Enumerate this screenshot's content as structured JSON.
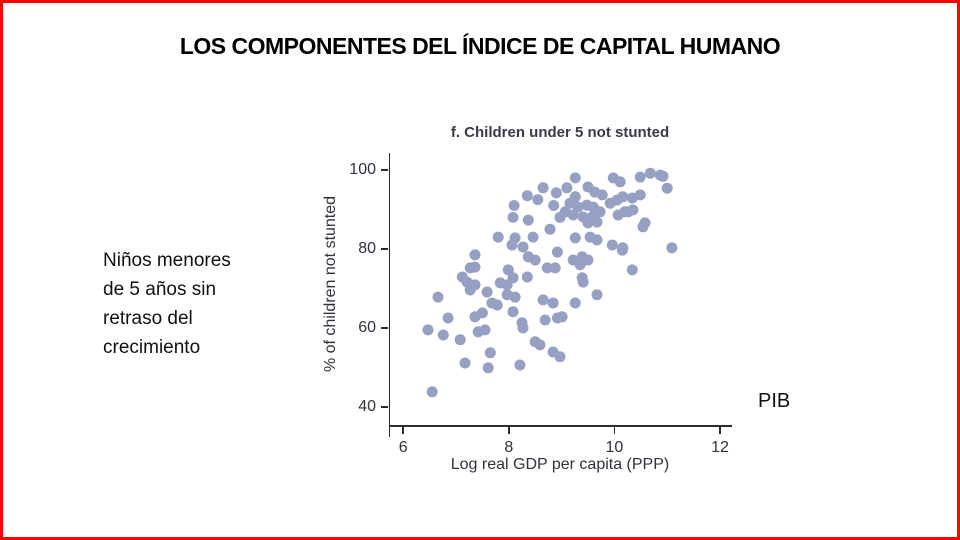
{
  "slide": {
    "title": "LOS COMPONENTES DEL ÍNDICE DE CAPITAL HUMANO",
    "left_annotation": "Niños menores\nde 5 años sin\nretraso del\ncrecimiento",
    "right_annotation": "PIB",
    "border_color": "#ff0000"
  },
  "chart_data": {
    "type": "scatter",
    "title": "f. Children under 5 not stunted",
    "xlabel": "Log real GDP per capita (PPP)",
    "ylabel": "% of children not stunted",
    "xlim": [
      5.75,
      12.19
    ],
    "ylim": [
      35.4,
      103.8
    ],
    "xticks": [
      6,
      8,
      10,
      12
    ],
    "yticks": [
      40,
      60,
      80,
      100
    ],
    "grid": false,
    "legend_position": "none",
    "marker_color": "#96a0c3",
    "marker_radius": 5.5,
    "axis_color": "#2b2b33",
    "text_color": "#32323e",
    "points": [
      [
        8.65,
        95.5
      ],
      [
        8.35,
        93.5
      ],
      [
        8.55,
        92.5
      ],
      [
        8.9,
        94.2
      ],
      [
        9.1,
        95.5
      ],
      [
        8.1,
        91
      ],
      [
        8.85,
        91
      ],
      [
        8.97,
        88
      ],
      [
        8.08,
        88
      ],
      [
        8.37,
        87.3
      ],
      [
        8.78,
        85
      ],
      [
        7.8,
        83
      ],
      [
        8.12,
        82.8
      ],
      [
        8.46,
        83
      ],
      [
        8.27,
        80.5
      ],
      [
        8.06,
        81
      ],
      [
        8.37,
        78
      ],
      [
        8.5,
        77.2
      ],
      [
        8.92,
        79.2
      ],
      [
        7.36,
        78.5
      ],
      [
        7.36,
        75.4
      ],
      [
        7.27,
        75.2
      ],
      [
        7.12,
        72.9
      ],
      [
        7.21,
        71.6
      ],
      [
        7.99,
        74.7
      ],
      [
        8.08,
        72.7
      ],
      [
        8.35,
        72.9
      ],
      [
        8.73,
        75.2
      ],
      [
        8.88,
        75.2
      ],
      [
        9.26,
        98
      ],
      [
        9.98,
        98
      ],
      [
        10.49,
        98.2
      ],
      [
        10.68,
        99.2
      ],
      [
        10.87,
        98.7
      ],
      [
        10.92,
        98.4
      ],
      [
        11.0,
        95.4
      ],
      [
        9.26,
        93.2
      ],
      [
        9.5,
        95.7
      ],
      [
        9.63,
        94.4
      ],
      [
        9.77,
        93.7
      ],
      [
        9.16,
        91.6
      ],
      [
        9.31,
        90.6
      ],
      [
        9.48,
        91.1
      ],
      [
        9.6,
        90.6
      ],
      [
        9.07,
        89.4
      ],
      [
        9.22,
        88.6
      ],
      [
        9.41,
        88.1
      ],
      [
        9.58,
        88.1
      ],
      [
        9.73,
        89.4
      ],
      [
        9.92,
        91.6
      ],
      [
        10.05,
        92.4
      ],
      [
        10.16,
        93.2
      ],
      [
        10.26,
        89.4
      ],
      [
        10.49,
        93.7
      ],
      [
        10.07,
        88.6
      ],
      [
        9.67,
        86.8
      ],
      [
        9.5,
        86.6
      ],
      [
        10.54,
        85.6
      ],
      [
        9.26,
        82.8
      ],
      [
        9.54,
        83
      ],
      [
        9.67,
        82.3
      ],
      [
        9.96,
        81
      ],
      [
        10.15,
        79.7
      ],
      [
        11.09,
        80.3
      ],
      [
        9.22,
        77.2
      ],
      [
        9.39,
        78
      ],
      [
        9.5,
        77.2
      ],
      [
        9.35,
        76
      ],
      [
        10.34,
        74.7
      ],
      [
        9.39,
        72.7
      ],
      [
        10.11,
        97
      ],
      [
        10.34,
        92.9
      ],
      [
        10.2,
        89.4
      ],
      [
        10.35,
        89.9
      ],
      [
        10.58,
        86.6
      ],
      [
        10.16,
        80.3
      ],
      [
        6.66,
        67.8
      ],
      [
        7.27,
        69.6
      ],
      [
        7.36,
        70.9
      ],
      [
        7.59,
        69.1
      ],
      [
        7.84,
        71.4
      ],
      [
        7.97,
        70.9
      ],
      [
        7.97,
        68.4
      ],
      [
        8.12,
        67.8
      ],
      [
        7.68,
        66.3
      ],
      [
        7.78,
        65.8
      ],
      [
        7.5,
        63.8
      ],
      [
        7.36,
        62.8
      ],
      [
        6.85,
        62.5
      ],
      [
        6.47,
        59.5
      ],
      [
        6.76,
        58.2
      ],
      [
        7.08,
        57
      ],
      [
        7.42,
        59
      ],
      [
        7.55,
        59.5
      ],
      [
        8.08,
        64.1
      ],
      [
        8.25,
        61.3
      ],
      [
        8.27,
        60
      ],
      [
        8.65,
        67.1
      ],
      [
        8.84,
        66.3
      ],
      [
        8.69,
        62
      ],
      [
        8.92,
        62.5
      ],
      [
        8.5,
        56.5
      ],
      [
        8.59,
        55.7
      ],
      [
        8.84,
        53.9
      ],
      [
        7.65,
        53.7
      ],
      [
        7.61,
        49.9
      ],
      [
        7.17,
        51.1
      ],
      [
        8.21,
        50.6
      ],
      [
        6.55,
        43.8
      ],
      [
        9.41,
        71.6
      ],
      [
        9.67,
        68.4
      ],
      [
        9.26,
        66.3
      ],
      [
        9.01,
        62.8
      ],
      [
        8.97,
        52.7
      ]
    ]
  }
}
